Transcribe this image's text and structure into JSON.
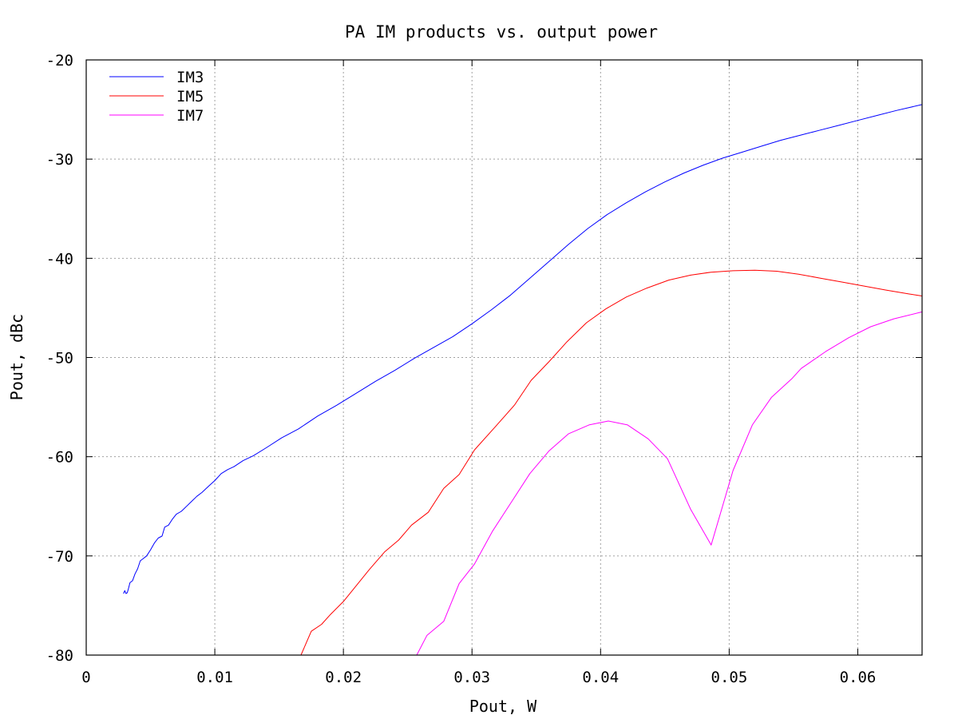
{
  "chart_data": {
    "type": "line",
    "title": "PA IM products vs. output power",
    "xlabel": "Pout, W",
    "ylabel": "Pout, dBc",
    "xlim": [
      0,
      0.065
    ],
    "ylim": [
      -80,
      -20
    ],
    "xticks": [
      0,
      0.01,
      0.02,
      0.03,
      0.04,
      0.05,
      0.06
    ],
    "xtick_labels": [
      "0",
      "0.01",
      "0.02",
      "0.03",
      "0.04",
      "0.05",
      "0.06"
    ],
    "yticks": [
      -80,
      -70,
      -60,
      -50,
      -40,
      -30,
      -20
    ],
    "ytick_labels": [
      "-80",
      "-70",
      "-60",
      "-50",
      "-40",
      "-30",
      "-20"
    ],
    "grid": true,
    "legend_position": "top-left",
    "series": [
      {
        "name": "IM3",
        "color": "#0000ff",
        "points": [
          [
            0.0029,
            -73.8
          ],
          [
            0.003,
            -73.5
          ],
          [
            0.0031,
            -73.8
          ],
          [
            0.0032,
            -73.7
          ],
          [
            0.0033,
            -73.2
          ],
          [
            0.0034,
            -72.7
          ],
          [
            0.0036,
            -72.5
          ],
          [
            0.0038,
            -71.8
          ],
          [
            0.004,
            -71.3
          ],
          [
            0.0042,
            -70.5
          ],
          [
            0.0044,
            -70.3
          ],
          [
            0.0047,
            -70.0
          ],
          [
            0.005,
            -69.4
          ],
          [
            0.0053,
            -68.7
          ],
          [
            0.0056,
            -68.2
          ],
          [
            0.0059,
            -68.0
          ],
          [
            0.0061,
            -67.1
          ],
          [
            0.0064,
            -66.9
          ],
          [
            0.0067,
            -66.3
          ],
          [
            0.007,
            -65.8
          ],
          [
            0.0074,
            -65.5
          ],
          [
            0.0078,
            -65.0
          ],
          [
            0.0082,
            -64.5
          ],
          [
            0.0086,
            -64.0
          ],
          [
            0.009,
            -63.6
          ],
          [
            0.0095,
            -63.0
          ],
          [
            0.01,
            -62.4
          ],
          [
            0.0105,
            -61.7
          ],
          [
            0.011,
            -61.3
          ],
          [
            0.0115,
            -61.0
          ],
          [
            0.0122,
            -60.4
          ],
          [
            0.013,
            -59.9
          ],
          [
            0.014,
            -59.1
          ],
          [
            0.0152,
            -58.1
          ],
          [
            0.0165,
            -57.2
          ],
          [
            0.018,
            -55.9
          ],
          [
            0.0195,
            -54.8
          ],
          [
            0.021,
            -53.6
          ],
          [
            0.0225,
            -52.4
          ],
          [
            0.024,
            -51.3
          ],
          [
            0.0255,
            -50.1
          ],
          [
            0.027,
            -49.0
          ],
          [
            0.0285,
            -47.9
          ],
          [
            0.03,
            -46.6
          ],
          [
            0.0315,
            -45.2
          ],
          [
            0.033,
            -43.7
          ],
          [
            0.0345,
            -42.0
          ],
          [
            0.036,
            -40.3
          ],
          [
            0.0375,
            -38.6
          ],
          [
            0.039,
            -37.0
          ],
          [
            0.0405,
            -35.6
          ],
          [
            0.042,
            -34.4
          ],
          [
            0.0435,
            -33.3
          ],
          [
            0.045,
            -32.3
          ],
          [
            0.0465,
            -31.4
          ],
          [
            0.048,
            -30.6
          ],
          [
            0.0495,
            -29.9
          ],
          [
            0.051,
            -29.3
          ],
          [
            0.0525,
            -28.7
          ],
          [
            0.054,
            -28.1
          ],
          [
            0.0555,
            -27.6
          ],
          [
            0.057,
            -27.1
          ],
          [
            0.0585,
            -26.6
          ],
          [
            0.06,
            -26.1
          ],
          [
            0.0615,
            -25.6
          ],
          [
            0.063,
            -25.1
          ],
          [
            0.065,
            -24.5
          ]
        ]
      },
      {
        "name": "IM5",
        "color": "#ff0000",
        "points": [
          [
            0.0167,
            -80.0
          ],
          [
            0.0175,
            -77.6
          ],
          [
            0.0183,
            -76.9
          ],
          [
            0.019,
            -75.9
          ],
          [
            0.02,
            -74.6
          ],
          [
            0.021,
            -73.0
          ],
          [
            0.022,
            -71.4
          ],
          [
            0.0232,
            -69.6
          ],
          [
            0.0243,
            -68.4
          ],
          [
            0.0253,
            -66.9
          ],
          [
            0.0266,
            -65.6
          ],
          [
            0.0278,
            -63.2
          ],
          [
            0.029,
            -61.8
          ],
          [
            0.0302,
            -59.3
          ],
          [
            0.0318,
            -57.0
          ],
          [
            0.0333,
            -54.8
          ],
          [
            0.0346,
            -52.3
          ],
          [
            0.036,
            -50.4
          ],
          [
            0.0374,
            -48.4
          ],
          [
            0.0389,
            -46.5
          ],
          [
            0.0404,
            -45.1
          ],
          [
            0.042,
            -43.9
          ],
          [
            0.0436,
            -43.0
          ],
          [
            0.0453,
            -42.2
          ],
          [
            0.047,
            -41.7
          ],
          [
            0.0486,
            -41.4
          ],
          [
            0.0503,
            -41.25
          ],
          [
            0.052,
            -41.2
          ],
          [
            0.0537,
            -41.3
          ],
          [
            0.0554,
            -41.6
          ],
          [
            0.0571,
            -42.0
          ],
          [
            0.0588,
            -42.4
          ],
          [
            0.0605,
            -42.8
          ],
          [
            0.0622,
            -43.2
          ],
          [
            0.064,
            -43.6
          ],
          [
            0.065,
            -43.8
          ]
        ]
      },
      {
        "name": "IM7",
        "color": "#ff00ff",
        "points": [
          [
            0.0257,
            -80.0
          ],
          [
            0.0265,
            -78.0
          ],
          [
            0.0278,
            -76.6
          ],
          [
            0.029,
            -72.8
          ],
          [
            0.0302,
            -70.8
          ],
          [
            0.0316,
            -67.5
          ],
          [
            0.0331,
            -64.5
          ],
          [
            0.0345,
            -61.7
          ],
          [
            0.036,
            -59.4
          ],
          [
            0.0375,
            -57.7
          ],
          [
            0.0391,
            -56.8
          ],
          [
            0.0406,
            -56.4
          ],
          [
            0.0421,
            -56.8
          ],
          [
            0.0437,
            -58.2
          ],
          [
            0.0452,
            -60.2
          ],
          [
            0.047,
            -65.3
          ],
          [
            0.0486,
            -68.9
          ],
          [
            0.0503,
            -61.4
          ],
          [
            0.0518,
            -56.8
          ],
          [
            0.0533,
            -54.0
          ],
          [
            0.0549,
            -52.1
          ],
          [
            0.0556,
            -51.1
          ],
          [
            0.0575,
            -49.4
          ],
          [
            0.0593,
            -48.0
          ],
          [
            0.061,
            -46.9
          ],
          [
            0.0628,
            -46.1
          ],
          [
            0.065,
            -45.4
          ]
        ]
      }
    ]
  }
}
